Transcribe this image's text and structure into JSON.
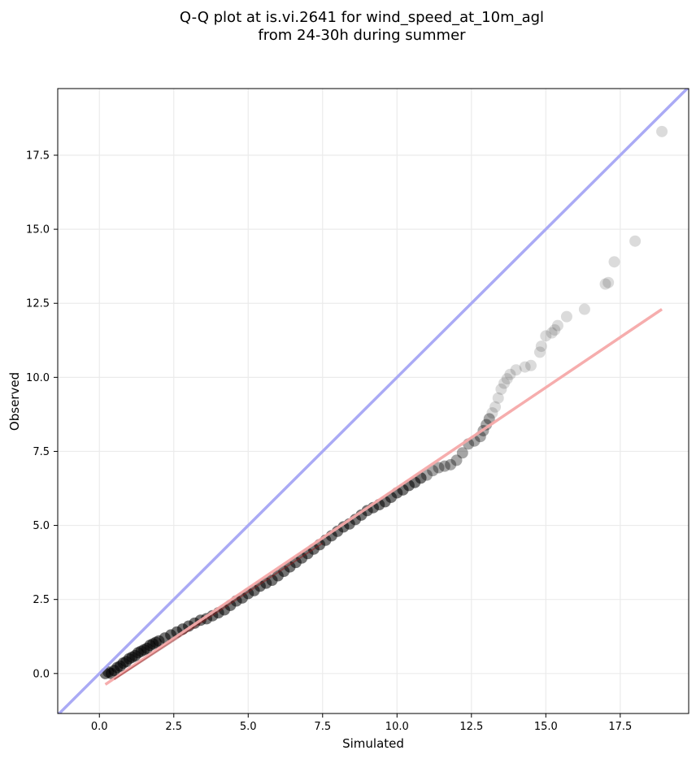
{
  "chart_data": {
    "type": "scatter",
    "title_line1": "Q-Q plot at is.vi.2641 for wind_speed_at_10m_agl",
    "title_line2": "from 24-30h during summer",
    "xlabel": "Simulated",
    "ylabel": "Observed",
    "xlim": [
      -1.4,
      19.8
    ],
    "ylim": [
      -1.35,
      19.75
    ],
    "x_ticks": [
      0.0,
      2.5,
      5.0,
      7.5,
      10.0,
      12.5,
      15.0,
      17.5
    ],
    "x_tick_labels": [
      "0.0",
      "2.5",
      "5.0",
      "7.5",
      "10.0",
      "12.5",
      "15.0",
      "17.5"
    ],
    "y_ticks": [
      0.0,
      2.5,
      5.0,
      7.5,
      10.0,
      12.5,
      15.0,
      17.5
    ],
    "y_tick_labels": [
      "0.0",
      "2.5",
      "5.0",
      "7.5",
      "10.0",
      "12.5",
      "15.0",
      "17.5"
    ],
    "grid": true,
    "identity_line": {
      "color": "#aaaaf5",
      "x": [
        -1.4,
        19.8
      ],
      "y": [
        -1.4,
        19.8
      ]
    },
    "fit_line": {
      "color": "#f5a9a9",
      "x": [
        0.2,
        18.9
      ],
      "y": [
        -0.37,
        12.3
      ]
    },
    "fit_line_overlay": {
      "color": "#8b1a1a",
      "x": [
        0.5,
        7.5
      ],
      "y": [
        -0.2,
        4.4
      ]
    },
    "point_color": "#000000",
    "points": [
      [
        0.2,
        0.0
      ],
      [
        0.3,
        0.05
      ],
      [
        0.4,
        0.0
      ],
      [
        0.5,
        0.1
      ],
      [
        0.6,
        0.2
      ],
      [
        0.7,
        0.25
      ],
      [
        0.8,
        0.35
      ],
      [
        0.9,
        0.4
      ],
      [
        1.0,
        0.5
      ],
      [
        1.1,
        0.55
      ],
      [
        1.2,
        0.6
      ],
      [
        1.3,
        0.7
      ],
      [
        1.4,
        0.75
      ],
      [
        1.5,
        0.8
      ],
      [
        1.6,
        0.85
      ],
      [
        1.7,
        0.95
      ],
      [
        1.8,
        1.0
      ],
      [
        1.9,
        1.05
      ],
      [
        2.0,
        1.1
      ],
      [
        2.2,
        1.2
      ],
      [
        2.4,
        1.3
      ],
      [
        2.6,
        1.4
      ],
      [
        2.8,
        1.5
      ],
      [
        3.0,
        1.6
      ],
      [
        3.2,
        1.7
      ],
      [
        3.4,
        1.8
      ],
      [
        3.6,
        1.85
      ],
      [
        3.8,
        1.95
      ],
      [
        4.0,
        2.05
      ],
      [
        4.2,
        2.15
      ],
      [
        4.4,
        2.3
      ],
      [
        4.6,
        2.45
      ],
      [
        4.8,
        2.55
      ],
      [
        5.0,
        2.7
      ],
      [
        5.2,
        2.8
      ],
      [
        5.4,
        2.95
      ],
      [
        5.6,
        3.05
      ],
      [
        5.8,
        3.15
      ],
      [
        6.0,
        3.3
      ],
      [
        6.2,
        3.45
      ],
      [
        6.4,
        3.6
      ],
      [
        6.6,
        3.75
      ],
      [
        6.8,
        3.9
      ],
      [
        7.0,
        4.05
      ],
      [
        7.2,
        4.2
      ],
      [
        7.4,
        4.35
      ],
      [
        7.6,
        4.5
      ],
      [
        7.8,
        4.65
      ],
      [
        8.0,
        4.8
      ],
      [
        8.2,
        4.95
      ],
      [
        8.4,
        5.05
      ],
      [
        8.6,
        5.2
      ],
      [
        8.8,
        5.35
      ],
      [
        9.0,
        5.5
      ],
      [
        9.2,
        5.6
      ],
      [
        9.4,
        5.7
      ],
      [
        9.6,
        5.8
      ],
      [
        9.8,
        5.95
      ],
      [
        10.0,
        6.1
      ],
      [
        10.2,
        6.2
      ],
      [
        10.4,
        6.35
      ],
      [
        10.6,
        6.45
      ],
      [
        10.8,
        6.6
      ],
      [
        11.0,
        6.7
      ],
      [
        11.2,
        6.85
      ],
      [
        11.4,
        6.95
      ],
      [
        11.6,
        7.0
      ],
      [
        11.8,
        7.05
      ],
      [
        12.0,
        7.2
      ],
      [
        12.2,
        7.45
      ],
      [
        12.4,
        7.75
      ],
      [
        12.6,
        7.85
      ],
      [
        12.8,
        8.0
      ],
      [
        12.9,
        8.2
      ],
      [
        13.0,
        8.4
      ],
      [
        13.1,
        8.6
      ],
      [
        13.2,
        8.8
      ],
      [
        13.3,
        9.0
      ],
      [
        13.4,
        9.3
      ],
      [
        13.5,
        9.6
      ],
      [
        13.6,
        9.8
      ],
      [
        13.7,
        9.95
      ],
      [
        13.8,
        10.1
      ],
      [
        14.0,
        10.25
      ],
      [
        14.3,
        10.35
      ],
      [
        14.5,
        10.4
      ],
      [
        14.8,
        10.85
      ],
      [
        14.85,
        11.05
      ],
      [
        15.0,
        11.4
      ],
      [
        15.2,
        11.5
      ],
      [
        15.3,
        11.6
      ],
      [
        15.4,
        11.75
      ],
      [
        15.7,
        12.05
      ],
      [
        16.3,
        12.3
      ],
      [
        17.0,
        13.15
      ],
      [
        17.1,
        13.2
      ],
      [
        17.3,
        13.9
      ],
      [
        18.0,
        14.6
      ],
      [
        18.9,
        18.3
      ]
    ]
  }
}
